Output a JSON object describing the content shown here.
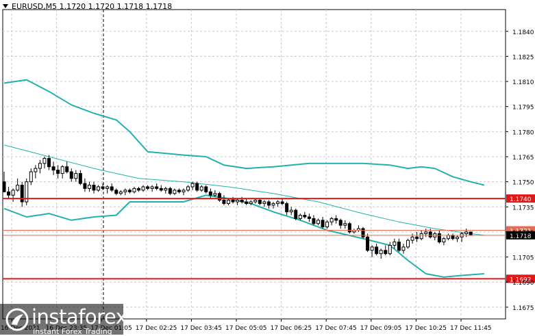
{
  "header": {
    "symbol_line": "EURUSD,M5  1.1720 1.1720 1.1718 1.1718"
  },
  "logo": {
    "name": "instaforex",
    "tagline": "Instant Forex Trading"
  },
  "colors": {
    "background": "#ffffff",
    "grid": "#c8c8c8",
    "candle": "#000000",
    "bollinger": "#20b2aa",
    "level_line": "#e01818",
    "price_line": "#e86a50",
    "label_red": "#e01818",
    "label_price": "#000000"
  },
  "chart_data": {
    "type": "candlestick",
    "symbol": "EURUSD",
    "timeframe": "M5",
    "ylim": [
      1.1668,
      1.1853
    ],
    "y_ticks": [
      "1.1840",
      "1.1825",
      "1.1810",
      "1.1795",
      "1.1780",
      "1.1765",
      "1.1750",
      "1.1735",
      "1.1720",
      "1.1705",
      "1.1690",
      "1.1675"
    ],
    "x_ticks": [
      "16 Dec 2021",
      "16 Dec 23:35",
      "17 Dec 01:05",
      "17 Dec 02:25",
      "17 Dec 03:45",
      "17 Dec 05:05",
      "17 Dec 06:25",
      "17 Dec 07:45",
      "17 Dec 09:05",
      "17 Dec 10:25",
      "17 Dec 11:45"
    ],
    "levels": [
      {
        "label": "1.1740",
        "price": 1.174
      },
      {
        "label": "1.1692",
        "price": 1.1692
      }
    ],
    "markers": [
      {
        "label": "1.1721",
        "price": 1.1721
      },
      {
        "label": "1.1718",
        "price": 1.1718
      }
    ],
    "candles": [
      [
        1.175,
        1.1756,
        1.1745,
        1.1744
      ],
      [
        1.1744,
        1.1747,
        1.174,
        1.1742
      ],
      [
        1.1742,
        1.1746,
        1.1738,
        1.1745
      ],
      [
        1.1745,
        1.1752,
        1.1744,
        1.1748
      ],
      [
        1.1748,
        1.175,
        1.1735,
        1.1738
      ],
      [
        1.1738,
        1.1752,
        1.1736,
        1.175
      ],
      [
        1.175,
        1.1758,
        1.1748,
        1.1756
      ],
      [
        1.1756,
        1.176,
        1.1752,
        1.1758
      ],
      [
        1.1758,
        1.1763,
        1.1755,
        1.1761
      ],
      [
        1.1761,
        1.1765,
        1.1758,
        1.1764
      ],
      [
        1.1764,
        1.1766,
        1.1757,
        1.1759
      ],
      [
        1.1759,
        1.1762,
        1.1754,
        1.1757
      ],
      [
        1.1757,
        1.176,
        1.1752,
        1.1755
      ],
      [
        1.1755,
        1.176,
        1.1752,
        1.1759
      ],
      [
        1.1759,
        1.1762,
        1.1755,
        1.1756
      ],
      [
        1.1756,
        1.1758,
        1.175,
        1.1752
      ],
      [
        1.1752,
        1.1757,
        1.175,
        1.1755
      ],
      [
        1.1755,
        1.1757,
        1.1748,
        1.1749
      ],
      [
        1.1749,
        1.1752,
        1.1744,
        1.1746
      ],
      [
        1.1746,
        1.175,
        1.1744,
        1.1748
      ],
      [
        1.1748,
        1.175,
        1.1743,
        1.1745
      ],
      [
        1.1745,
        1.1748,
        1.1744,
        1.1747
      ],
      [
        1.1747,
        1.1749,
        1.1745,
        1.1746
      ],
      [
        1.1746,
        1.1748,
        1.1743,
        1.1747
      ],
      [
        1.1747,
        1.1749,
        1.1744,
        1.1745
      ],
      [
        1.1745,
        1.1746,
        1.1742,
        1.1743
      ],
      [
        1.1743,
        1.1745,
        1.1742,
        1.1744
      ],
      [
        1.1744,
        1.1746,
        1.1742,
        1.1745
      ],
      [
        1.1745,
        1.1746,
        1.1743,
        1.1744
      ],
      [
        1.1744,
        1.1747,
        1.1743,
        1.1746
      ],
      [
        1.1746,
        1.1747,
        1.1744,
        1.1745
      ],
      [
        1.1745,
        1.1748,
        1.1744,
        1.1747
      ],
      [
        1.1747,
        1.1748,
        1.1745,
        1.1746
      ],
      [
        1.1746,
        1.1748,
        1.1744,
        1.1747
      ],
      [
        1.1747,
        1.1749,
        1.1745,
        1.1746
      ],
      [
        1.1746,
        1.1748,
        1.1744,
        1.1745
      ],
      [
        1.1745,
        1.1747,
        1.1743,
        1.1746
      ],
      [
        1.1746,
        1.1747,
        1.1742,
        1.1743
      ],
      [
        1.1743,
        1.1746,
        1.1742,
        1.1745
      ],
      [
        1.1745,
        1.1746,
        1.1743,
        1.1744
      ],
      [
        1.1744,
        1.1746,
        1.1742,
        1.1745
      ],
      [
        1.1745,
        1.1748,
        1.1744,
        1.1747
      ],
      [
        1.1747,
        1.175,
        1.1745,
        1.1749
      ],
      [
        1.1749,
        1.175,
        1.1744,
        1.1745
      ],
      [
        1.1745,
        1.1748,
        1.1744,
        1.1747
      ],
      [
        1.1747,
        1.1748,
        1.1743,
        1.1744
      ],
      [
        1.1744,
        1.1746,
        1.174,
        1.1742
      ],
      [
        1.1742,
        1.1745,
        1.1741,
        1.1743
      ],
      [
        1.1743,
        1.1744,
        1.1738,
        1.1739
      ],
      [
        1.1739,
        1.1742,
        1.1736,
        1.1737
      ],
      [
        1.1737,
        1.174,
        1.1736,
        1.1739
      ],
      [
        1.1739,
        1.1741,
        1.1737,
        1.1738
      ],
      [
        1.1738,
        1.174,
        1.1736,
        1.1739
      ],
      [
        1.1739,
        1.1741,
        1.1737,
        1.1738
      ],
      [
        1.1738,
        1.174,
        1.1736,
        1.1737
      ],
      [
        1.1737,
        1.1739,
        1.1736,
        1.1738
      ],
      [
        1.1738,
        1.174,
        1.1737,
        1.1739
      ],
      [
        1.1739,
        1.174,
        1.1736,
        1.1737
      ],
      [
        1.1737,
        1.1739,
        1.1735,
        1.1738
      ],
      [
        1.1738,
        1.1739,
        1.1734,
        1.1736
      ],
      [
        1.1736,
        1.1738,
        1.1734,
        1.1737
      ],
      [
        1.1737,
        1.1739,
        1.1735,
        1.1738
      ],
      [
        1.1738,
        1.174,
        1.1736,
        1.1737
      ],
      [
        1.1737,
        1.1738,
        1.173,
        1.1732
      ],
      [
        1.1732,
        1.1735,
        1.173,
        1.1733
      ],
      [
        1.1733,
        1.1734,
        1.1727,
        1.1728
      ],
      [
        1.1728,
        1.1731,
        1.1727,
        1.173
      ],
      [
        1.173,
        1.1732,
        1.1728,
        1.1729
      ],
      [
        1.1729,
        1.1731,
        1.1726,
        1.1728
      ],
      [
        1.1728,
        1.173,
        1.1724,
        1.1725
      ],
      [
        1.1725,
        1.1728,
        1.1724,
        1.1727
      ],
      [
        1.1727,
        1.1729,
        1.1722,
        1.1723
      ],
      [
        1.1723,
        1.1727,
        1.1722,
        1.1726
      ],
      [
        1.1726,
        1.1729,
        1.1724,
        1.1728
      ],
      [
        1.1728,
        1.173,
        1.1725,
        1.1727
      ],
      [
        1.1727,
        1.1728,
        1.1722,
        1.1724
      ],
      [
        1.1724,
        1.1727,
        1.1722,
        1.1725
      ],
      [
        1.1725,
        1.1726,
        1.1719,
        1.172
      ],
      [
        1.172,
        1.1722,
        1.1719,
        1.1721
      ],
      [
        1.1721,
        1.1724,
        1.172,
        1.1722
      ],
      [
        1.1722,
        1.1723,
        1.1716,
        1.1717
      ],
      [
        1.1717,
        1.1719,
        1.1708,
        1.1709
      ],
      [
        1.1709,
        1.1712,
        1.1705,
        1.1711
      ],
      [
        1.1711,
        1.1713,
        1.1706,
        1.1707
      ],
      [
        1.1707,
        1.171,
        1.1704,
        1.1709
      ],
      [
        1.1709,
        1.1712,
        1.1706,
        1.1707
      ],
      [
        1.1707,
        1.1714,
        1.1706,
        1.1712
      ],
      [
        1.1712,
        1.1716,
        1.171,
        1.1714
      ],
      [
        1.1714,
        1.1716,
        1.1708,
        1.1709
      ],
      [
        1.1709,
        1.1713,
        1.1707,
        1.1711
      ],
      [
        1.1711,
        1.1716,
        1.171,
        1.1715
      ],
      [
        1.1715,
        1.1719,
        1.1713,
        1.1717
      ],
      [
        1.1717,
        1.172,
        1.1714,
        1.1716
      ],
      [
        1.1716,
        1.1721,
        1.1715,
        1.1719
      ],
      [
        1.1719,
        1.1722,
        1.1717,
        1.172
      ],
      [
        1.172,
        1.1722,
        1.1716,
        1.1717
      ],
      [
        1.1717,
        1.172,
        1.1715,
        1.1719
      ],
      [
        1.1719,
        1.1721,
        1.1713,
        1.1714
      ],
      [
        1.1714,
        1.1717,
        1.1712,
        1.1716
      ],
      [
        1.1716,
        1.1719,
        1.1715,
        1.1718
      ],
      [
        1.1718,
        1.1719,
        1.1715,
        1.1716
      ],
      [
        1.1716,
        1.1718,
        1.1714,
        1.1717
      ],
      [
        1.1717,
        1.172,
        1.1714,
        1.1719
      ],
      [
        1.1719,
        1.1722,
        1.1717,
        1.172
      ],
      [
        1.172,
        1.172,
        1.1718,
        1.1718
      ]
    ],
    "bollinger_upper": [
      [
        0,
        1.1809
      ],
      [
        5,
        1.1811
      ],
      [
        10,
        1.1804
      ],
      [
        15,
        1.1796
      ],
      [
        20,
        1.1791
      ],
      [
        25,
        1.1787
      ],
      [
        28,
        1.178
      ],
      [
        32,
        1.1768
      ],
      [
        40,
        1.1766
      ],
      [
        45,
        1.1765
      ],
      [
        49,
        1.176
      ],
      [
        54,
        1.1758
      ],
      [
        60,
        1.1759
      ],
      [
        68,
        1.1761
      ],
      [
        75,
        1.1761
      ],
      [
        80,
        1.1761
      ],
      [
        86,
        1.176
      ],
      [
        90,
        1.1758
      ],
      [
        93,
        1.1759
      ],
      [
        96,
        1.1758
      ],
      [
        100,
        1.1753
      ],
      [
        104,
        1.175
      ],
      [
        107,
        1.1748
      ]
    ],
    "bollinger_middle": [
      [
        0,
        1.1772
      ],
      [
        10,
        1.1765
      ],
      [
        20,
        1.1758
      ],
      [
        30,
        1.1752
      ],
      [
        40,
        1.175
      ],
      [
        50,
        1.1747
      ],
      [
        60,
        1.1743
      ],
      [
        70,
        1.1738
      ],
      [
        80,
        1.1731
      ],
      [
        88,
        1.1726
      ],
      [
        96,
        1.1722
      ],
      [
        104,
        1.1719
      ],
      [
        107,
        1.1718
      ]
    ],
    "bollinger_lower": [
      [
        0,
        1.1734
      ],
      [
        5,
        1.1729
      ],
      [
        10,
        1.1731
      ],
      [
        15,
        1.1727
      ],
      [
        20,
        1.1729
      ],
      [
        25,
        1.173
      ],
      [
        28,
        1.1738
      ],
      [
        35,
        1.1738
      ],
      [
        40,
        1.1738
      ],
      [
        45,
        1.1742
      ],
      [
        50,
        1.174
      ],
      [
        55,
        1.1737
      ],
      [
        60,
        1.1732
      ],
      [
        66,
        1.1727
      ],
      [
        72,
        1.1721
      ],
      [
        80,
        1.1716
      ],
      [
        86,
        1.1712
      ],
      [
        90,
        1.1703
      ],
      [
        94,
        1.1695
      ],
      [
        98,
        1.1693
      ],
      [
        102,
        1.1694
      ],
      [
        107,
        1.1695
      ]
    ]
  }
}
